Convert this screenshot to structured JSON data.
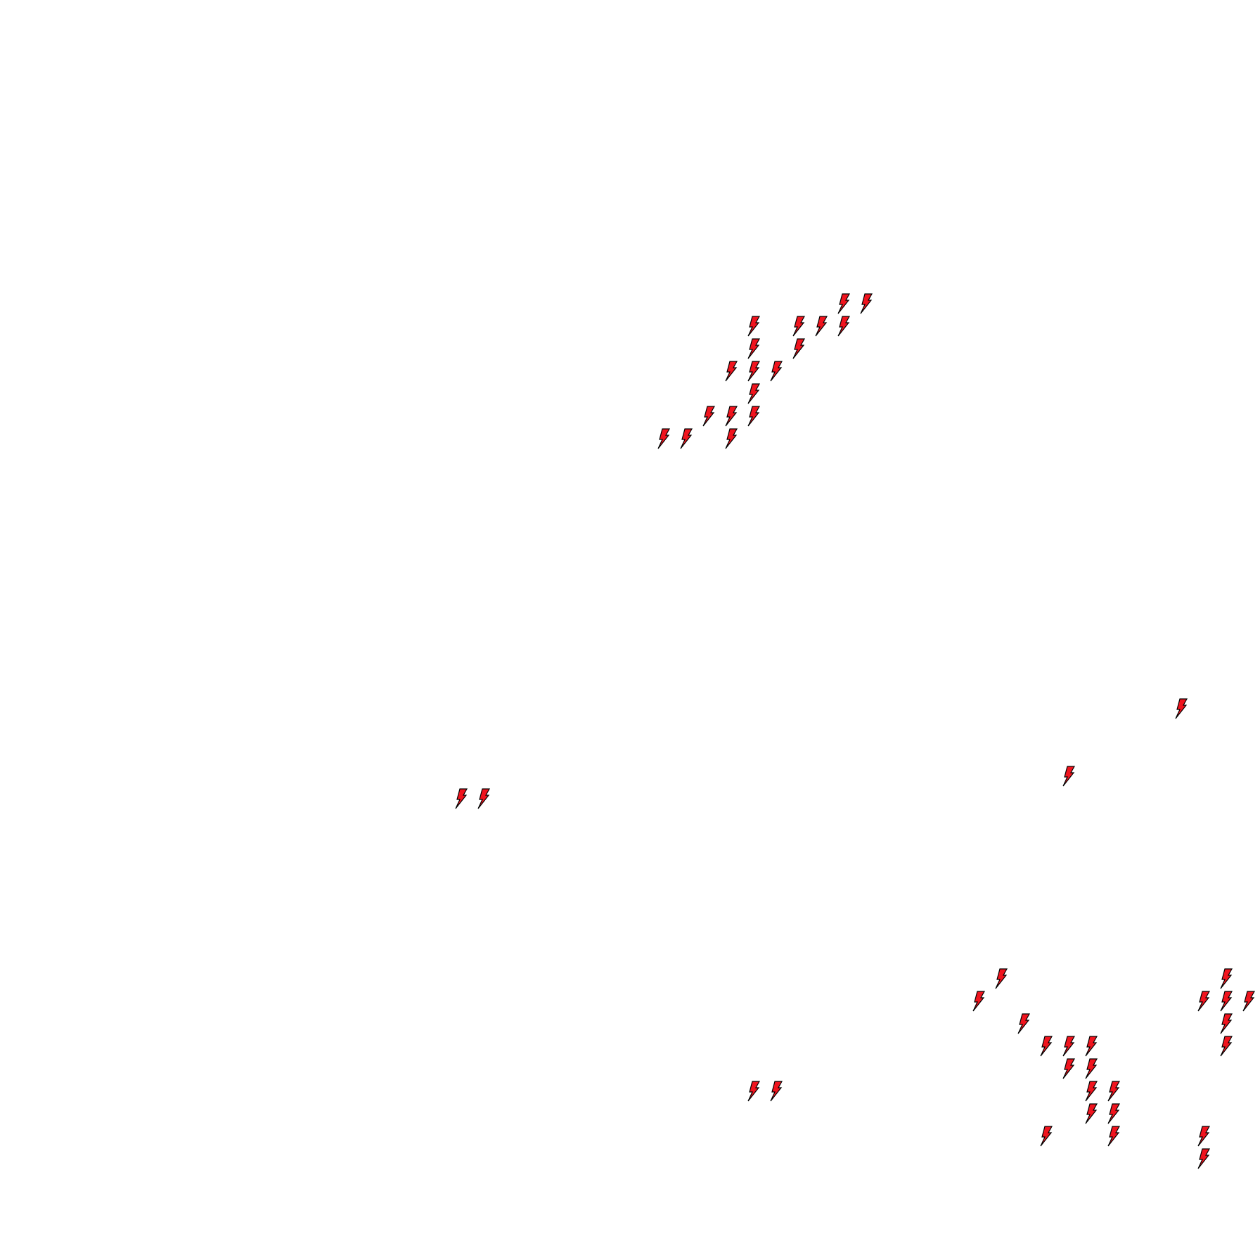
{
  "scene": {
    "background_color": "#ffffff",
    "marker": {
      "icon": "lightning-bolt-icon",
      "fill_color": "#f0141e",
      "outline_color": "#000000"
    }
  }
}
